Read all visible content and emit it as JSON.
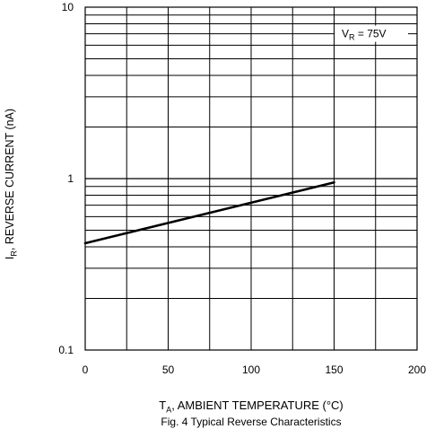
{
  "chart_data": {
    "type": "line",
    "title": "",
    "caption": "Fig. 4  Typical Reverse Characteristics",
    "xlabel": {
      "main": "T",
      "sub": "A",
      "rest": ", AMBIENT TEMPERATURE (°C)"
    },
    "ylabel": {
      "main": "I",
      "sub": "R",
      "rest": ", REVERSE  CURRENT (nA)"
    },
    "xlim": [
      0,
      200
    ],
    "ylim": [
      0.1,
      10
    ],
    "yscale": "log",
    "grid": true,
    "xticks": [
      0,
      50,
      100,
      150,
      200
    ],
    "xtick_labels": [
      "0",
      "50",
      "100",
      "150",
      "200"
    ],
    "yticks": [
      0.1,
      1,
      10
    ],
    "ytick_labels": [
      "0.1",
      "1",
      "10"
    ],
    "annotation": {
      "main": "V",
      "sub": "R",
      "rest": " = 75V"
    },
    "series": [
      {
        "x": [
          0,
          150
        ],
        "y": [
          0.42,
          0.95
        ]
      }
    ]
  }
}
